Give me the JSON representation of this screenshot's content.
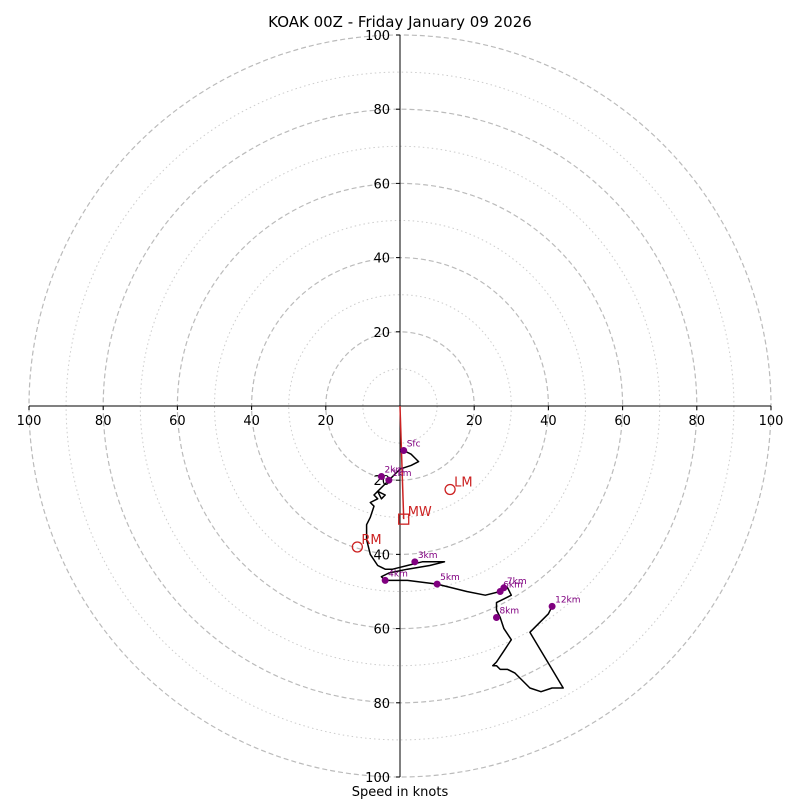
{
  "chart_data": {
    "type": "hodograph",
    "title": "KOAK 00Z - Friday January 09 2026",
    "xlabel": "Speed in knots",
    "max_speed": 100,
    "ring_major": [
      20,
      40,
      60,
      80,
      100
    ],
    "ring_minor": [
      10,
      30,
      50,
      70,
      90
    ],
    "tick_labels": [
      "20",
      "40",
      "60",
      "80",
      "100"
    ],
    "colors": {
      "hodograph": "#000000",
      "height_marker": "#800080",
      "storm_motion": "#cc2222",
      "grid": "#bbbbbb",
      "axis": "#000000"
    },
    "hodograph_trace": [
      [
        1,
        -12
      ],
      [
        3,
        -13
      ],
      [
        4,
        -14
      ],
      [
        5,
        -15
      ],
      [
        3,
        -16
      ],
      [
        0,
        -17
      ],
      [
        -2,
        -19
      ],
      [
        -3,
        -20
      ],
      [
        -4,
        -21
      ],
      [
        -5,
        -22
      ],
      [
        -6,
        -23
      ],
      [
        -4,
        -24
      ],
      [
        -5,
        -25
      ],
      [
        -6,
        -23
      ],
      [
        -7,
        -24
      ],
      [
        -6,
        -25
      ],
      [
        -8,
        -26
      ],
      [
        -7,
        -27
      ],
      [
        -8,
        -30
      ],
      [
        -9,
        -32
      ],
      [
        -9,
        -36
      ],
      [
        -8,
        -40
      ],
      [
        -6,
        -43
      ],
      [
        -4,
        -44
      ],
      [
        -2,
        -44
      ],
      [
        2,
        -43
      ],
      [
        6,
        -42
      ],
      [
        12,
        -42
      ],
      [
        8,
        -43
      ],
      [
        2,
        -44
      ],
      [
        -3,
        -45
      ],
      [
        -5,
        -46
      ],
      [
        -4,
        -47
      ],
      [
        2,
        -47
      ],
      [
        10,
        -48
      ],
      [
        18,
        -50
      ],
      [
        23,
        -51
      ],
      [
        27,
        -50
      ],
      [
        29,
        -49
      ],
      [
        30,
        -51
      ],
      [
        28,
        -52
      ],
      [
        26,
        -53
      ],
      [
        26,
        -55
      ],
      [
        27,
        -57
      ],
      [
        28,
        -60
      ],
      [
        30,
        -63
      ],
      [
        28,
        -66
      ],
      [
        26,
        -69
      ],
      [
        25,
        -70
      ],
      [
        26,
        -70
      ],
      [
        27,
        -71
      ],
      [
        29,
        -71
      ],
      [
        31,
        -72
      ],
      [
        33,
        -74
      ],
      [
        35,
        -76
      ],
      [
        38,
        -77
      ],
      [
        41,
        -76
      ],
      [
        44,
        -76
      ],
      [
        41,
        -71
      ],
      [
        38,
        -66
      ],
      [
        35,
        -61
      ],
      [
        38,
        -58
      ],
      [
        40,
        -56
      ],
      [
        41,
        -54
      ]
    ],
    "height_markers": [
      {
        "label": "Sfc",
        "u": 1,
        "v": -12
      },
      {
        "label": "1km",
        "u": -3,
        "v": -20
      },
      {
        "label": "2km",
        "u": -5,
        "v": -19
      },
      {
        "label": "3km",
        "u": 4,
        "v": -42
      },
      {
        "label": "4km",
        "u": -4,
        "v": -47
      },
      {
        "label": "5km",
        "u": 10,
        "v": -48
      },
      {
        "label": "6km",
        "u": 27,
        "v": -50
      },
      {
        "label": "7km",
        "u": 28,
        "v": -49
      },
      {
        "label": "8km",
        "u": 26,
        "v": -57
      },
      {
        "label": "12km",
        "u": 41,
        "v": -54
      }
    ],
    "storm_motion": {
      "rm": {
        "label": "RM",
        "u": -11.5,
        "v": -38
      },
      "lm": {
        "label": "LM",
        "u": 13.5,
        "v": -22.5
      },
      "mw": {
        "label": "MW",
        "u": 1,
        "v": -30.5
      }
    },
    "shear_vector": {
      "from": [
        0,
        0
      ],
      "to": [
        1,
        -30.5
      ]
    }
  }
}
